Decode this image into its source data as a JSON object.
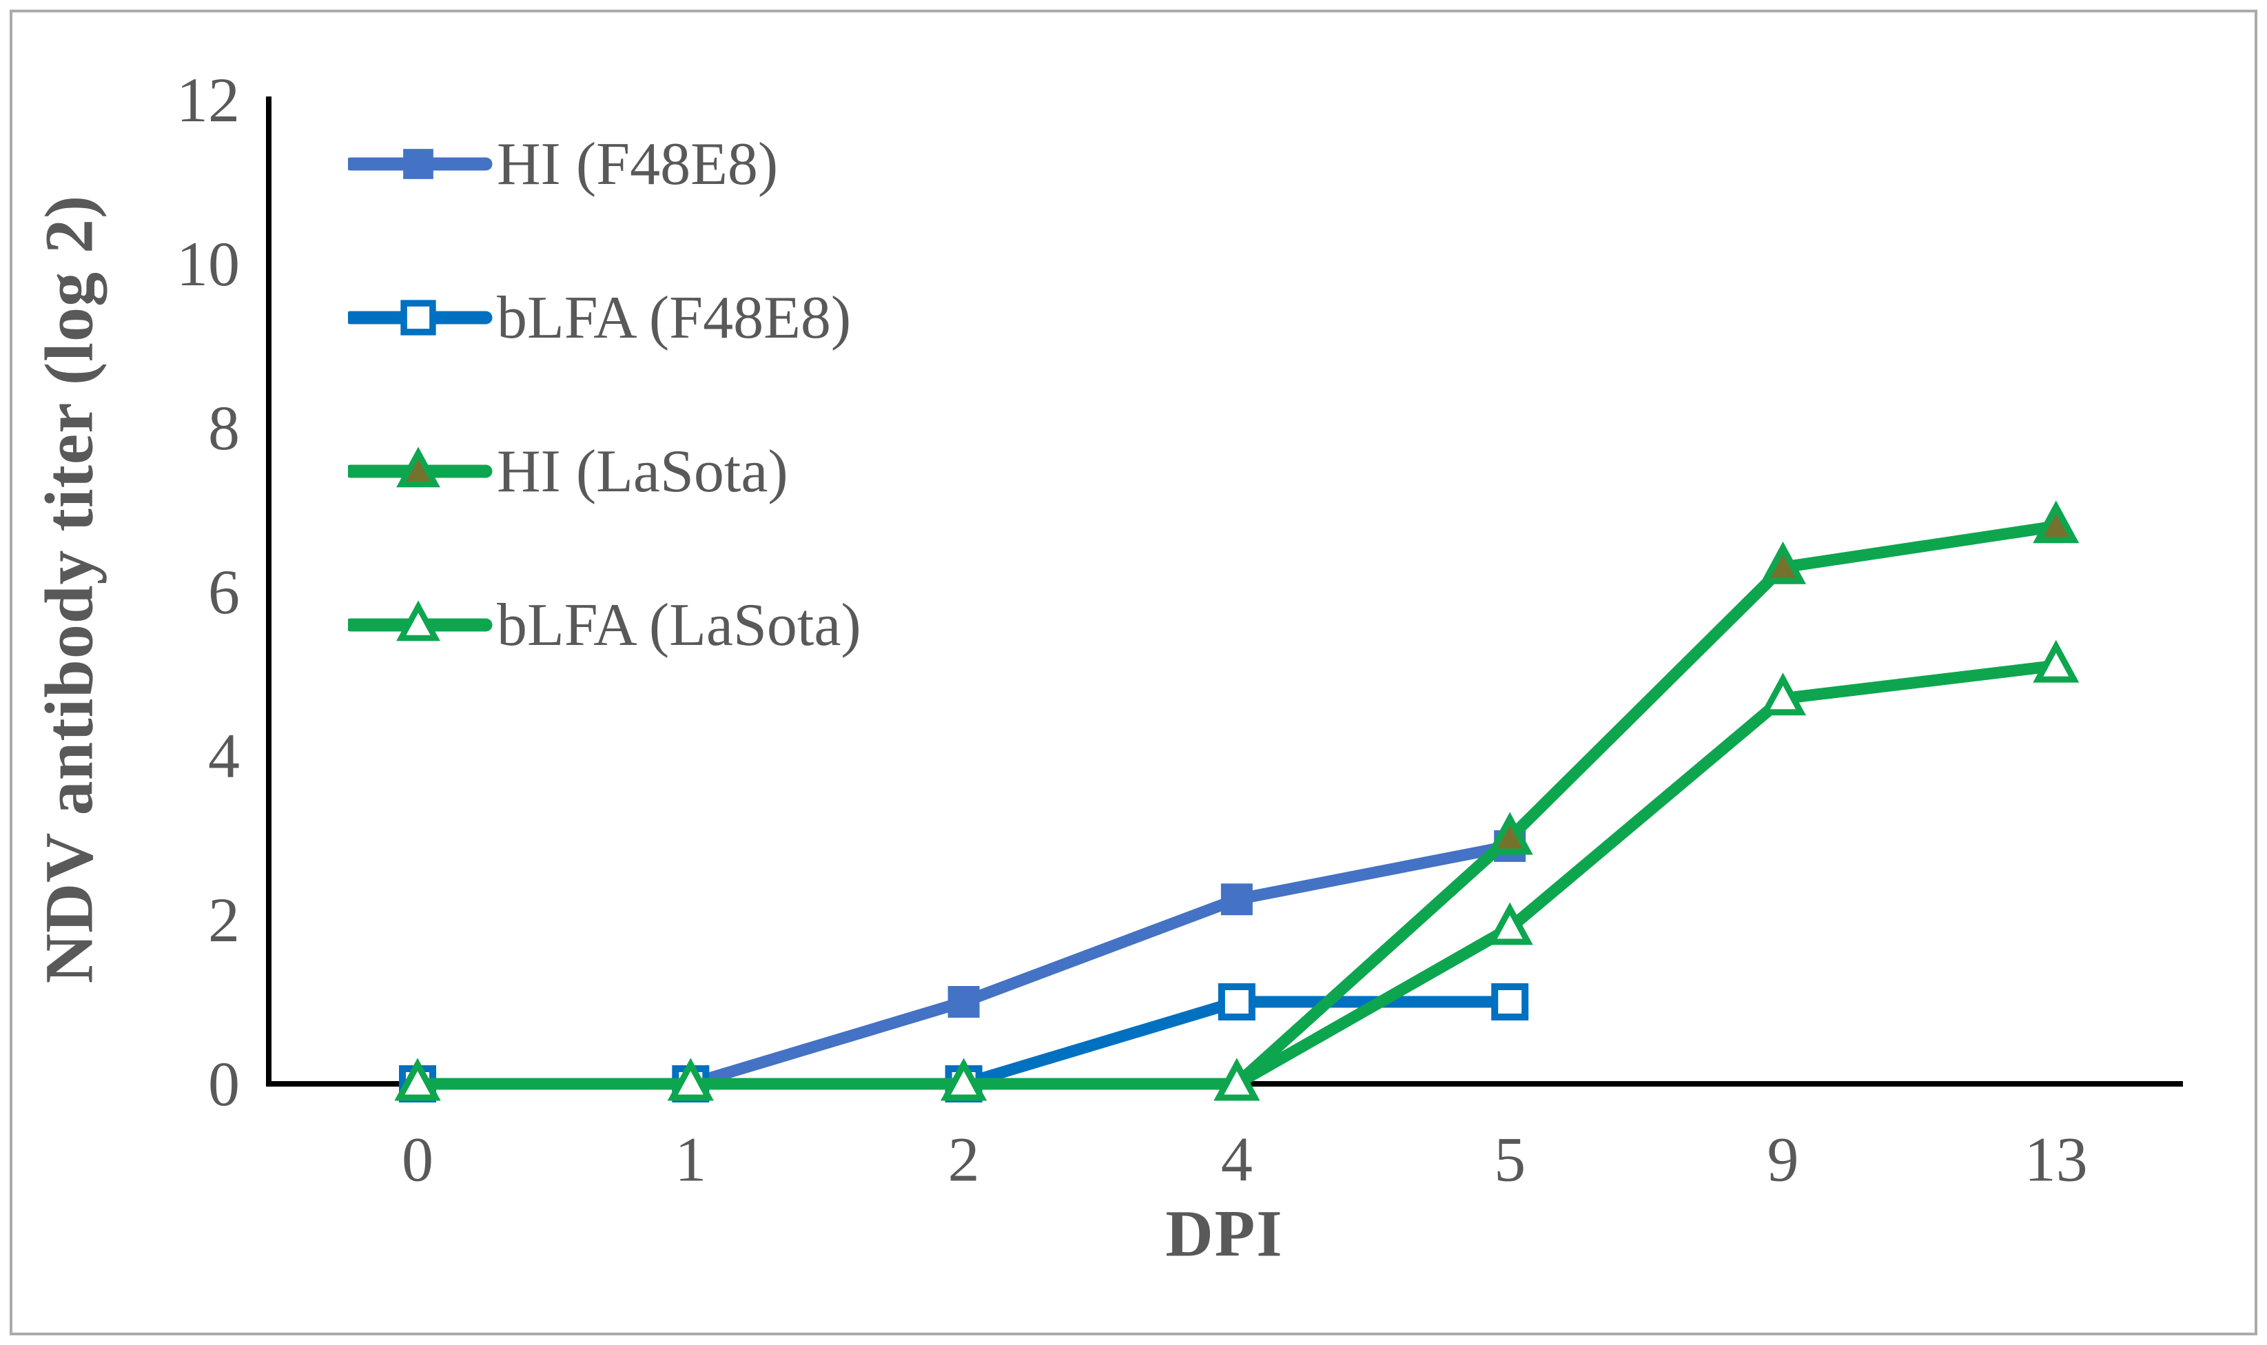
{
  "figure": {
    "background": "#FFFFFF",
    "border_color": "#ABABAB",
    "text_color": "#595959",
    "axis_color": "#000000"
  },
  "chart_data": {
    "type": "line",
    "title": "",
    "xlabel": "DPI",
    "ylabel": "NDV antibody titer (log 2)",
    "x_categories": [
      "0",
      "1",
      "2",
      "4",
      "5",
      "9",
      "13"
    ],
    "y_ticks": [
      0,
      2,
      4,
      6,
      8,
      10,
      12
    ],
    "ylim": [
      0,
      12
    ],
    "grid": false,
    "legend_position": "upper-left-inside",
    "series": [
      {
        "name": "HI (F48E8)",
        "marker": "filled-square",
        "line_color": "#4472C4",
        "marker_fill": "#4472C4",
        "marker_stroke": "#4472C4",
        "values": [
          0,
          0,
          1,
          2.25,
          2.9,
          null,
          null
        ]
      },
      {
        "name": "bLFA (F48E8)",
        "marker": "open-square",
        "line_color": "#0070C0",
        "marker_fill": "#FFFFFF",
        "marker_stroke": "#0070C0",
        "values": [
          0,
          0,
          0,
          1,
          1,
          null,
          null
        ]
      },
      {
        "name": "HI (LaSota)",
        "marker": "filled-triangle",
        "line_color": "#0DA64F",
        "marker_fill": "#75722D",
        "marker_stroke": "#0DA64F",
        "values": [
          0,
          0,
          0,
          0,
          3,
          6.3,
          6.8
        ]
      },
      {
        "name": "bLFA (LaSota)",
        "marker": "open-triangle",
        "line_color": "#0DA64F",
        "marker_fill": "#FFFFFF",
        "marker_stroke": "#0DA64F",
        "values": [
          0,
          0,
          0,
          0,
          1.9,
          4.7,
          5.1
        ]
      }
    ]
  }
}
